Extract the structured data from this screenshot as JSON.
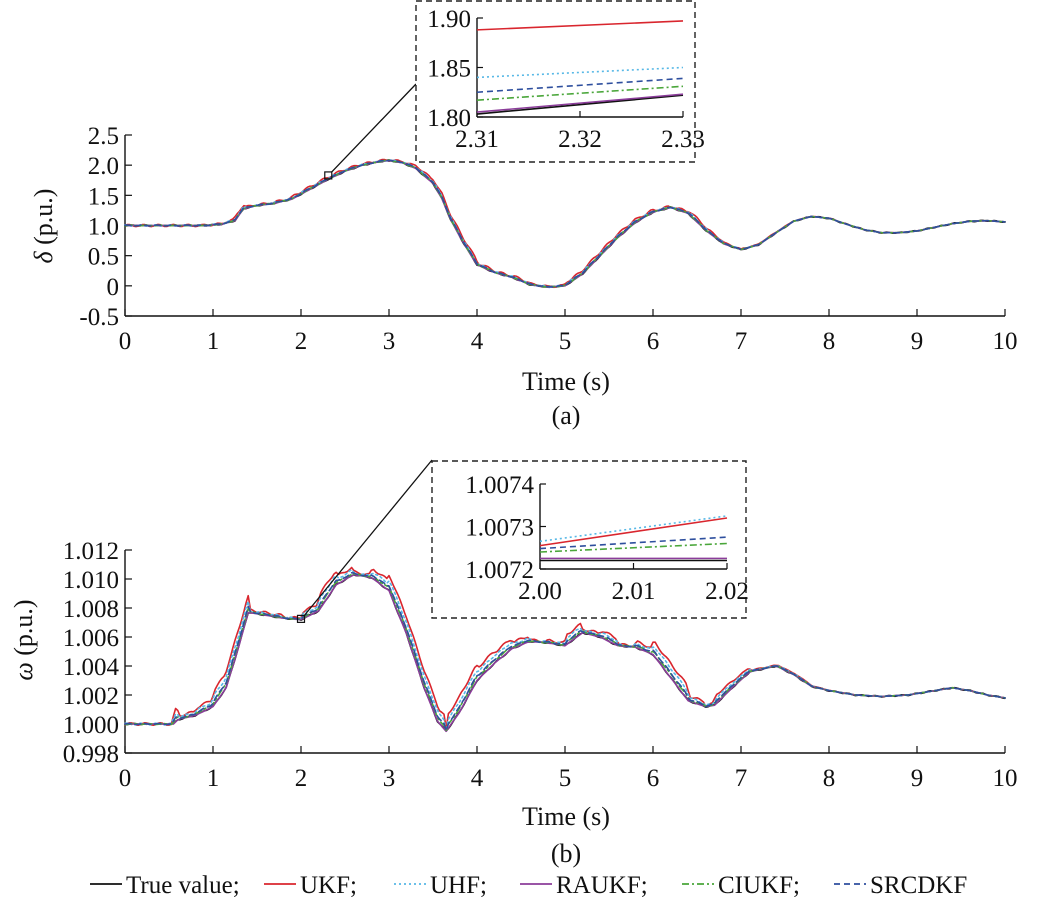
{
  "chart_data": [
    {
      "id": "a",
      "type": "line",
      "panel_label": "(a)",
      "xlabel": "Time (s)",
      "ylabel_symbol": "δ",
      "ylabel_unit": " (p.u.)",
      "xlim": [
        0,
        10
      ],
      "ylim": [
        -0.5,
        2.5
      ],
      "xticks": [
        0,
        1,
        2,
        3,
        4,
        5,
        6,
        7,
        8,
        9,
        10
      ],
      "xtick_labels": [
        "0",
        "1",
        "2",
        "3",
        "4",
        "5",
        "6",
        "7",
        "8",
        "9",
        "10"
      ],
      "yticks": [
        -0.5,
        0,
        0.5,
        1.0,
        1.5,
        2.0,
        2.5
      ],
      "ytick_labels": [
        "-0.5",
        "0",
        "0.5",
        "1.0",
        "1.5",
        "2.0",
        "2.5"
      ],
      "true_curve": {
        "x": [
          0,
          0.5,
          0.9,
          1.1,
          1.25,
          1.35,
          1.5,
          1.7,
          1.9,
          2.1,
          2.3,
          2.5,
          2.7,
          2.9,
          3.0,
          3.15,
          3.3,
          3.5,
          3.6,
          3.7,
          3.85,
          4.0,
          4.2,
          4.4,
          4.6,
          4.8,
          5.0,
          5.2,
          5.4,
          5.6,
          5.8,
          6.0,
          6.2,
          6.4,
          6.6,
          6.8,
          7.0,
          7.2,
          7.4,
          7.6,
          7.8,
          8.0,
          8.2,
          8.4,
          8.6,
          8.8,
          9.0,
          9.2,
          9.4,
          9.6,
          9.8,
          10.0
        ],
        "y": [
          1.0,
          1.0,
          1.0,
          1.02,
          1.08,
          1.28,
          1.33,
          1.37,
          1.44,
          1.6,
          1.76,
          1.9,
          2.0,
          2.06,
          2.08,
          2.04,
          1.95,
          1.7,
          1.45,
          1.1,
          0.7,
          0.35,
          0.22,
          0.14,
          0.02,
          -0.02,
          0.0,
          0.2,
          0.5,
          0.8,
          1.05,
          1.22,
          1.3,
          1.2,
          0.92,
          0.7,
          0.6,
          0.68,
          0.88,
          1.07,
          1.15,
          1.12,
          1.02,
          0.93,
          0.88,
          0.88,
          0.91,
          0.97,
          1.03,
          1.07,
          1.08,
          1.06
        ]
      },
      "series": [
        {
          "name": "True value",
          "color": "#111111",
          "dash": "",
          "offset": 0,
          "spread": 0.0
        },
        {
          "name": "UKF",
          "color": "#d9262e",
          "dash": "",
          "offset": 0.08,
          "spread": 1.0
        },
        {
          "name": "UHF",
          "color": "#57b8e6",
          "dash": "2 3",
          "offset": 0.04,
          "spread": 0.6
        },
        {
          "name": "RAUKF",
          "color": "#8b3d9a",
          "dash": "",
          "offset": 0.0,
          "spread": 0.15
        },
        {
          "name": "CIUKF",
          "color": "#4aa63a",
          "dash": "7 3 2 3",
          "offset": 0.015,
          "spread": 0.35
        },
        {
          "name": "SRCDKF",
          "color": "#2e4f9e",
          "dash": "6 4",
          "offset": 0.025,
          "spread": 0.45
        }
      ],
      "zoom_point": {
        "x": 2.31,
        "y": 1.83
      },
      "inset": {
        "xlim": [
          2.31,
          2.33
        ],
        "ylim": [
          1.8,
          1.9
        ],
        "xticks": [
          2.31,
          2.32,
          2.33
        ],
        "xtick_labels": [
          "2.31",
          "2.32",
          "2.33"
        ],
        "yticks": [
          1.8,
          1.85,
          1.9
        ],
        "ytick_labels": [
          "1.80",
          "1.85",
          "1.90"
        ],
        "lines": [
          {
            "name": "True value",
            "y": [
              1.803,
              1.822
            ]
          },
          {
            "name": "UKF",
            "y": [
              1.888,
              1.897
            ]
          },
          {
            "name": "UHF",
            "y": [
              1.84,
              1.85
            ]
          },
          {
            "name": "RAUKF",
            "y": [
              1.805,
              1.823
            ]
          },
          {
            "name": "CIUKF",
            "y": [
              1.817,
              1.831
            ]
          },
          {
            "name": "SRCDKF",
            "y": [
              1.825,
              1.839
            ]
          }
        ]
      }
    },
    {
      "id": "b",
      "type": "line",
      "panel_label": "(b)",
      "xlabel": "Time (s)",
      "ylabel_symbol": "ω",
      "ylabel_unit": " (p.u.)",
      "xlim": [
        0,
        10
      ],
      "ylim": [
        0.998,
        1.012
      ],
      "xticks": [
        0,
        1,
        2,
        3,
        4,
        5,
        6,
        7,
        8,
        9,
        10
      ],
      "xtick_labels": [
        "0",
        "1",
        "2",
        "3",
        "4",
        "5",
        "6",
        "7",
        "8",
        "9",
        "10"
      ],
      "yticks": [
        0.998,
        1.0,
        1.002,
        1.004,
        1.006,
        1.008,
        1.01,
        1.012
      ],
      "ytick_labels": [
        "0.998",
        "1.000",
        "1.002",
        "1.004",
        "1.006",
        "1.008",
        "1.010",
        "1.012"
      ],
      "true_curve": {
        "x": [
          0,
          0.3,
          0.55,
          0.6,
          0.8,
          1.0,
          1.15,
          1.3,
          1.4,
          1.6,
          1.8,
          2.0,
          2.2,
          2.4,
          2.6,
          2.8,
          3.0,
          3.2,
          3.4,
          3.55,
          3.65,
          3.8,
          4.0,
          4.2,
          4.4,
          4.6,
          4.8,
          5.0,
          5.2,
          5.4,
          5.6,
          5.8,
          6.0,
          6.2,
          6.4,
          6.6,
          6.7,
          6.9,
          7.1,
          7.4,
          7.6,
          7.8,
          8.0,
          8.3,
          8.6,
          8.9,
          9.1,
          9.4,
          9.6,
          9.8,
          10.0
        ],
        "y": [
          1.0,
          1.0,
          1.0,
          1.0003,
          1.0006,
          1.0012,
          1.0025,
          1.0055,
          1.0077,
          1.0075,
          1.0073,
          1.0072,
          1.0078,
          1.0096,
          1.0103,
          1.0101,
          1.0092,
          1.0062,
          1.0025,
          1.0002,
          0.9995,
          1.0008,
          1.003,
          1.0042,
          1.0052,
          1.0057,
          1.0056,
          1.0054,
          1.0063,
          1.006,
          1.0054,
          1.0053,
          1.0048,
          1.0032,
          1.0016,
          1.0012,
          1.0013,
          1.0025,
          1.0036,
          1.004,
          1.0034,
          1.0026,
          1.0023,
          1.002,
          1.0019,
          1.002,
          1.0022,
          1.0025,
          1.0023,
          1.002,
          1.0018
        ]
      },
      "series": [
        {
          "name": "True value",
          "color": "#111111",
          "dash": "",
          "offset": 0,
          "spread": 0.0
        },
        {
          "name": "UKF",
          "color": "#d9262e",
          "dash": "",
          "offset": 0.0012,
          "spread": 1.0
        },
        {
          "name": "UHF",
          "color": "#57b8e6",
          "dash": "2 3",
          "offset": 0.0008,
          "spread": 0.7
        },
        {
          "name": "RAUKF",
          "color": "#8b3d9a",
          "dash": "",
          "offset": 0.0,
          "spread": 0.1
        },
        {
          "name": "CIUKF",
          "color": "#4aa63a",
          "dash": "7 3 2 3",
          "offset": 0.0003,
          "spread": 0.4
        },
        {
          "name": "SRCDKF",
          "color": "#2e4f9e",
          "dash": "6 4",
          "offset": 0.0004,
          "spread": 0.5
        }
      ],
      "zoom_point": {
        "x": 2.0,
        "y": 1.00725
      },
      "inset": {
        "xlim": [
          2.0,
          2.02
        ],
        "ylim": [
          1.0072,
          1.0074
        ],
        "xticks": [
          2.0,
          2.01,
          2.02
        ],
        "xtick_labels": [
          "2.00",
          "2.01",
          "2.02"
        ],
        "yticks": [
          1.0072,
          1.0073,
          1.0074
        ],
        "ytick_labels": [
          "1.0072",
          "1.0073",
          "1.0074"
        ],
        "lines": [
          {
            "name": "True value",
            "y": [
              1.00722,
              1.00722
            ]
          },
          {
            "name": "UKF",
            "y": [
              1.007255,
              1.00732
            ]
          },
          {
            "name": "UHF",
            "y": [
              1.007265,
              1.007325
            ]
          },
          {
            "name": "RAUKF",
            "y": [
              1.007225,
              1.007225
            ]
          },
          {
            "name": "CIUKF",
            "y": [
              1.00724,
              1.00726
            ]
          },
          {
            "name": "SRCDKF",
            "y": [
              1.007248,
              1.007275
            ]
          }
        ]
      }
    }
  ],
  "legend": [
    {
      "label": "True value;",
      "color": "#111111",
      "dash": ""
    },
    {
      "label": "UKF;",
      "color": "#d9262e",
      "dash": ""
    },
    {
      "label": "UHF;",
      "color": "#57b8e6",
      "dash": "2 3"
    },
    {
      "label": "RAUKF;",
      "color": "#8b3d9a",
      "dash": ""
    },
    {
      "label": "CIUKF;",
      "color": "#4aa63a",
      "dash": "7 3 2 3"
    },
    {
      "label": "SRCDKF",
      "color": "#2e4f9e",
      "dash": "6 4"
    }
  ]
}
